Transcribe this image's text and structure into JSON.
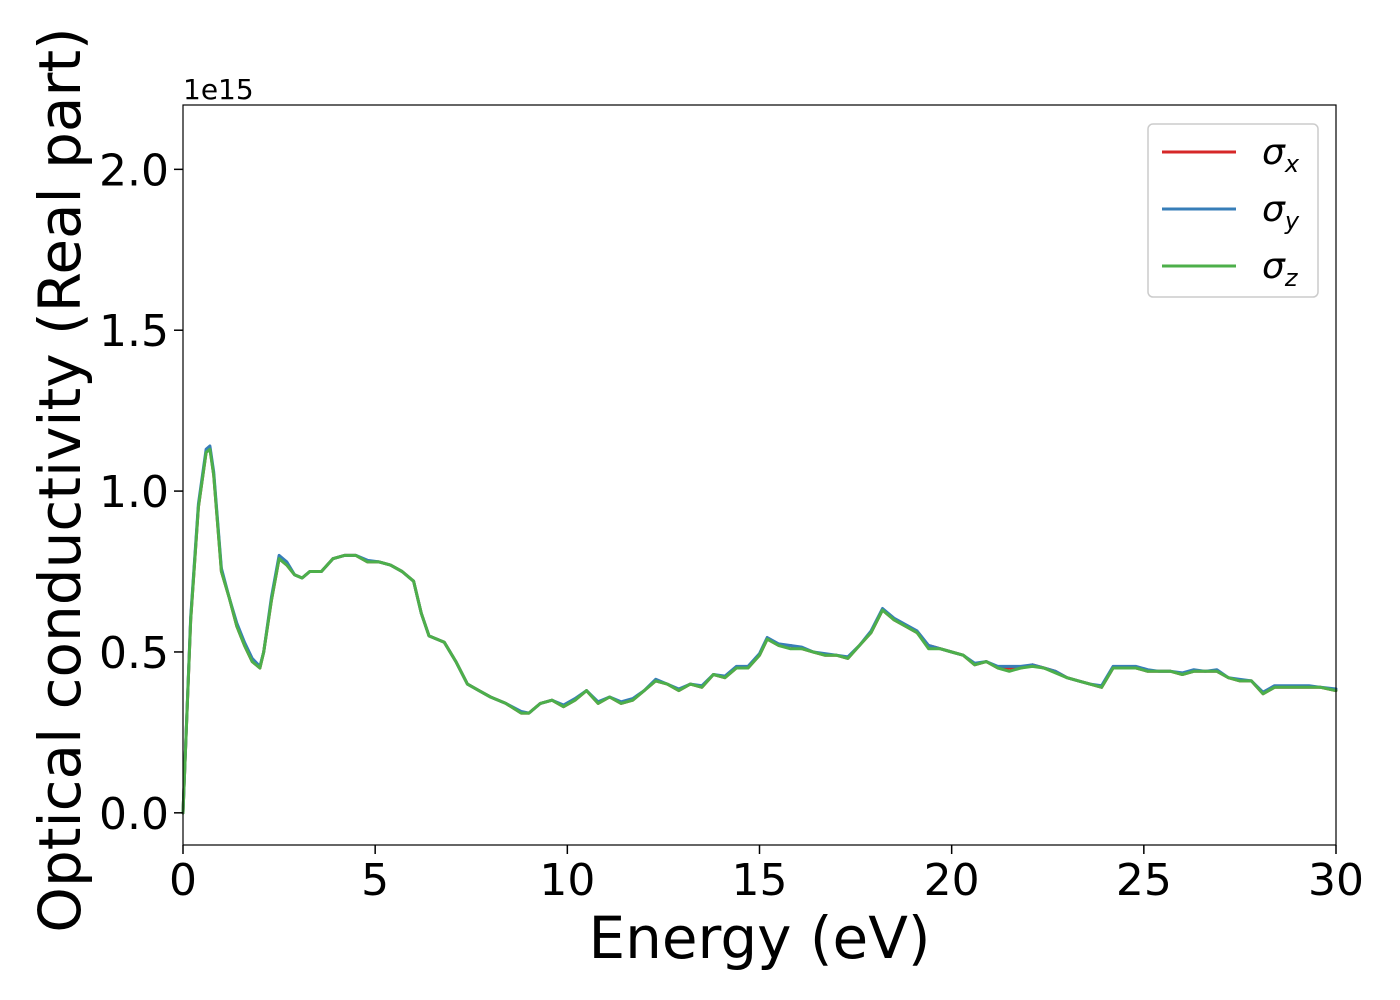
{
  "chart_data": {
    "type": "line",
    "title": "",
    "xlabel": "Energy (eV)",
    "ylabel": "Optical conductivity (Real part)",
    "y_offset_label": "1e15",
    "xlim": [
      0,
      30
    ],
    "ylim": [
      -0.1,
      2.2
    ],
    "xticks": [
      0,
      5,
      10,
      15,
      20,
      25,
      30
    ],
    "xtick_labels": [
      "0",
      "5",
      "10",
      "15",
      "20",
      "25",
      "30"
    ],
    "yticks": [
      0.0,
      0.5,
      1.0,
      1.5,
      2.0
    ],
    "ytick_labels": [
      "0.0",
      "0.5",
      "1.0",
      "1.5",
      "2.0"
    ],
    "grid": false,
    "legend_position": "top-right",
    "x": [
      0,
      0.2,
      0.4,
      0.6,
      0.7,
      0.8,
      1.0,
      1.2,
      1.4,
      1.6,
      1.8,
      2.0,
      2.1,
      2.3,
      2.5,
      2.7,
      2.9,
      3.1,
      3.3,
      3.6,
      3.9,
      4.2,
      4.5,
      4.8,
      5.1,
      5.4,
      5.7,
      6.0,
      6.2,
      6.4,
      6.8,
      7.1,
      7.4,
      7.7,
      8.0,
      8.4,
      8.8,
      9.0,
      9.3,
      9.6,
      9.9,
      10.2,
      10.5,
      10.8,
      11.1,
      11.4,
      11.7,
      12.0,
      12.3,
      12.6,
      12.9,
      13.2,
      13.5,
      13.8,
      14.1,
      14.4,
      14.7,
      15.0,
      15.2,
      15.5,
      15.8,
      16.1,
      16.4,
      16.7,
      17.0,
      17.3,
      17.6,
      17.9,
      18.2,
      18.5,
      18.8,
      19.1,
      19.4,
      19.7,
      20.0,
      20.3,
      20.6,
      20.9,
      21.2,
      21.5,
      21.8,
      22.1,
      22.4,
      22.7,
      23.0,
      23.3,
      23.6,
      23.9,
      24.2,
      24.5,
      24.8,
      25.1,
      25.4,
      25.7,
      26.0,
      26.3,
      26.6,
      26.9,
      27.2,
      27.5,
      27.8,
      28.1,
      28.4,
      28.7,
      29.0,
      29.3,
      29.6,
      30.0
    ],
    "series": [
      {
        "name": "σx",
        "label_base": "σ",
        "label_sub": "x",
        "color": "#d62728",
        "values": [
          0.0,
          0.6,
          0.95,
          1.12,
          1.135,
          1.05,
          0.75,
          0.67,
          0.58,
          0.52,
          0.47,
          0.45,
          0.5,
          0.66,
          0.79,
          0.77,
          0.74,
          0.73,
          0.75,
          0.75,
          0.79,
          0.8,
          0.8,
          0.78,
          0.78,
          0.77,
          0.75,
          0.72,
          0.62,
          0.55,
          0.53,
          0.47,
          0.4,
          0.38,
          0.36,
          0.34,
          0.31,
          0.31,
          0.34,
          0.35,
          0.33,
          0.35,
          0.38,
          0.34,
          0.36,
          0.34,
          0.35,
          0.38,
          0.41,
          0.4,
          0.38,
          0.4,
          0.39,
          0.43,
          0.42,
          0.45,
          0.45,
          0.49,
          0.54,
          0.52,
          0.52,
          0.51,
          0.5,
          0.49,
          0.49,
          0.48,
          0.52,
          0.56,
          0.63,
          0.6,
          0.58,
          0.56,
          0.52,
          0.51,
          0.5,
          0.49,
          0.46,
          0.47,
          0.45,
          0.45,
          0.45,
          0.46,
          0.45,
          0.44,
          0.42,
          0.41,
          0.4,
          0.39,
          0.45,
          0.45,
          0.45,
          0.44,
          0.44,
          0.44,
          0.43,
          0.44,
          0.44,
          0.44,
          0.42,
          0.41,
          0.41,
          0.37,
          0.39,
          0.39,
          0.39,
          0.39,
          0.39,
          0.38
        ]
      },
      {
        "name": "σy",
        "label_base": "σ",
        "label_sub": "y",
        "color": "#377eb8",
        "values": [
          0.0,
          0.61,
          0.96,
          1.13,
          1.14,
          1.06,
          0.76,
          0.67,
          0.59,
          0.53,
          0.48,
          0.455,
          0.5,
          0.67,
          0.8,
          0.78,
          0.74,
          0.73,
          0.75,
          0.75,
          0.79,
          0.8,
          0.8,
          0.785,
          0.78,
          0.77,
          0.75,
          0.72,
          0.62,
          0.55,
          0.53,
          0.47,
          0.4,
          0.38,
          0.36,
          0.34,
          0.315,
          0.31,
          0.34,
          0.35,
          0.335,
          0.355,
          0.38,
          0.345,
          0.36,
          0.345,
          0.355,
          0.38,
          0.415,
          0.4,
          0.385,
          0.4,
          0.395,
          0.43,
          0.425,
          0.455,
          0.455,
          0.495,
          0.545,
          0.525,
          0.52,
          0.515,
          0.5,
          0.495,
          0.49,
          0.485,
          0.52,
          0.565,
          0.635,
          0.605,
          0.585,
          0.565,
          0.52,
          0.51,
          0.5,
          0.49,
          0.465,
          0.47,
          0.455,
          0.455,
          0.455,
          0.46,
          0.45,
          0.44,
          0.42,
          0.41,
          0.4,
          0.395,
          0.455,
          0.455,
          0.455,
          0.445,
          0.44,
          0.44,
          0.435,
          0.445,
          0.44,
          0.445,
          0.42,
          0.415,
          0.41,
          0.375,
          0.395,
          0.395,
          0.395,
          0.395,
          0.39,
          0.385
        ]
      },
      {
        "name": "σz",
        "label_base": "σ",
        "label_sub": "z",
        "color": "#4daf4a",
        "values": [
          0.0,
          0.6,
          0.95,
          1.12,
          1.13,
          1.05,
          0.75,
          0.67,
          0.58,
          0.52,
          0.47,
          0.45,
          0.5,
          0.66,
          0.79,
          0.77,
          0.74,
          0.73,
          0.75,
          0.75,
          0.79,
          0.8,
          0.8,
          0.78,
          0.78,
          0.77,
          0.75,
          0.72,
          0.62,
          0.55,
          0.53,
          0.47,
          0.4,
          0.38,
          0.36,
          0.34,
          0.31,
          0.31,
          0.34,
          0.35,
          0.33,
          0.35,
          0.38,
          0.34,
          0.36,
          0.34,
          0.35,
          0.38,
          0.41,
          0.4,
          0.38,
          0.4,
          0.39,
          0.43,
          0.42,
          0.45,
          0.45,
          0.49,
          0.54,
          0.52,
          0.51,
          0.51,
          0.5,
          0.49,
          0.49,
          0.48,
          0.52,
          0.56,
          0.63,
          0.6,
          0.58,
          0.56,
          0.51,
          0.51,
          0.5,
          0.49,
          0.46,
          0.47,
          0.45,
          0.44,
          0.45,
          0.455,
          0.45,
          0.435,
          0.42,
          0.41,
          0.4,
          0.39,
          0.45,
          0.45,
          0.45,
          0.44,
          0.44,
          0.44,
          0.43,
          0.44,
          0.44,
          0.44,
          0.42,
          0.41,
          0.41,
          0.37,
          0.39,
          0.39,
          0.39,
          0.39,
          0.39,
          0.38
        ]
      }
    ]
  }
}
